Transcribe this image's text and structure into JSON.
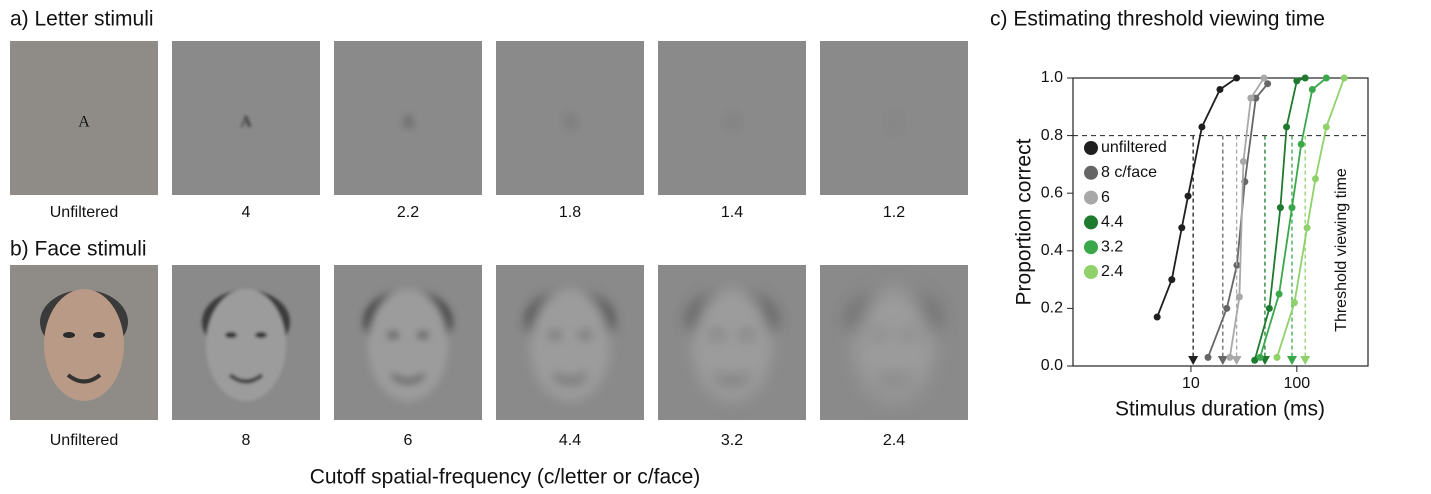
{
  "panels": [
    {
      "title": "a) Letter stimuli",
      "glyph": "A",
      "captions": [
        "Unfiltered",
        "4",
        "2.2",
        "1.8",
        "1.4",
        "1.2"
      ]
    },
    {
      "title": "b) Face stimuli",
      "captions": [
        "Unfiltered",
        "8",
        "6",
        "4.4",
        "3.2",
        "2.4"
      ]
    }
  ],
  "footer": "Cutoff spatial-frequency (c/letter or c/face)",
  "chart_data": {
    "type": "line",
    "title": "c) Estimating threshold viewing time",
    "x_label": "Stimulus duration (ms)",
    "y_label": "Proportion correct",
    "xlim": [
      0.77,
      470
    ],
    "xticks": [
      10,
      100
    ],
    "log_x": true,
    "ylim": [
      0,
      1.0
    ],
    "yticks": [
      {
        "value": 0,
        "label": "0.0"
      },
      {
        "value": 0.2,
        "label": "0.2"
      },
      {
        "value": 0.4,
        "label": "0.4"
      },
      {
        "value": 0.6,
        "label": "0.6"
      },
      {
        "value": 0.8,
        "label": "0.8"
      },
      {
        "value": 1.0,
        "label": "1.0"
      }
    ],
    "criterion": 0.8,
    "annotation": "Threshold viewing time",
    "legend": "upper left",
    "series": [
      {
        "name": "unfiltered",
        "color": "#1f1f1f",
        "x": [
          4.8,
          6.6,
          8.2,
          9.4,
          12.7,
          18.8,
          27
        ],
        "values": [
          0.17,
          0.3,
          0.48,
          0.59,
          0.83,
          0.96,
          1.0
        ],
        "threshold": 10.5
      },
      {
        "name": "8 c/face",
        "color": "#666666",
        "x": [
          14.5,
          21.8,
          27.2,
          32.3,
          41,
          53
        ],
        "values": [
          0.03,
          0.2,
          0.35,
          0.64,
          0.93,
          0.98
        ],
        "threshold": 20
      },
      {
        "name": "6",
        "color": "#a8a8a8",
        "x": [
          23.3,
          28.7,
          31.3,
          36.8,
          49
        ],
        "values": [
          0.03,
          0.24,
          0.71,
          0.93,
          1.0
        ],
        "threshold": 27
      },
      {
        "name": "4.4",
        "color": "#1e7a2e",
        "x": [
          40,
          55,
          70,
          80,
          100,
          120
        ],
        "values": [
          0.02,
          0.2,
          0.55,
          0.83,
          0.99,
          1.0
        ],
        "threshold": 50
      },
      {
        "name": "3.2",
        "color": "#3aa84a",
        "x": [
          45,
          68,
          90,
          110,
          140,
          190
        ],
        "values": [
          0.03,
          0.25,
          0.55,
          0.77,
          0.96,
          1.0
        ],
        "threshold": 90
      },
      {
        "name": "2.4",
        "color": "#8fd16a",
        "x": [
          65,
          95,
          125,
          150,
          190,
          280
        ],
        "values": [
          0.03,
          0.22,
          0.48,
          0.65,
          0.83,
          1.0
        ],
        "threshold": 120
      }
    ]
  }
}
